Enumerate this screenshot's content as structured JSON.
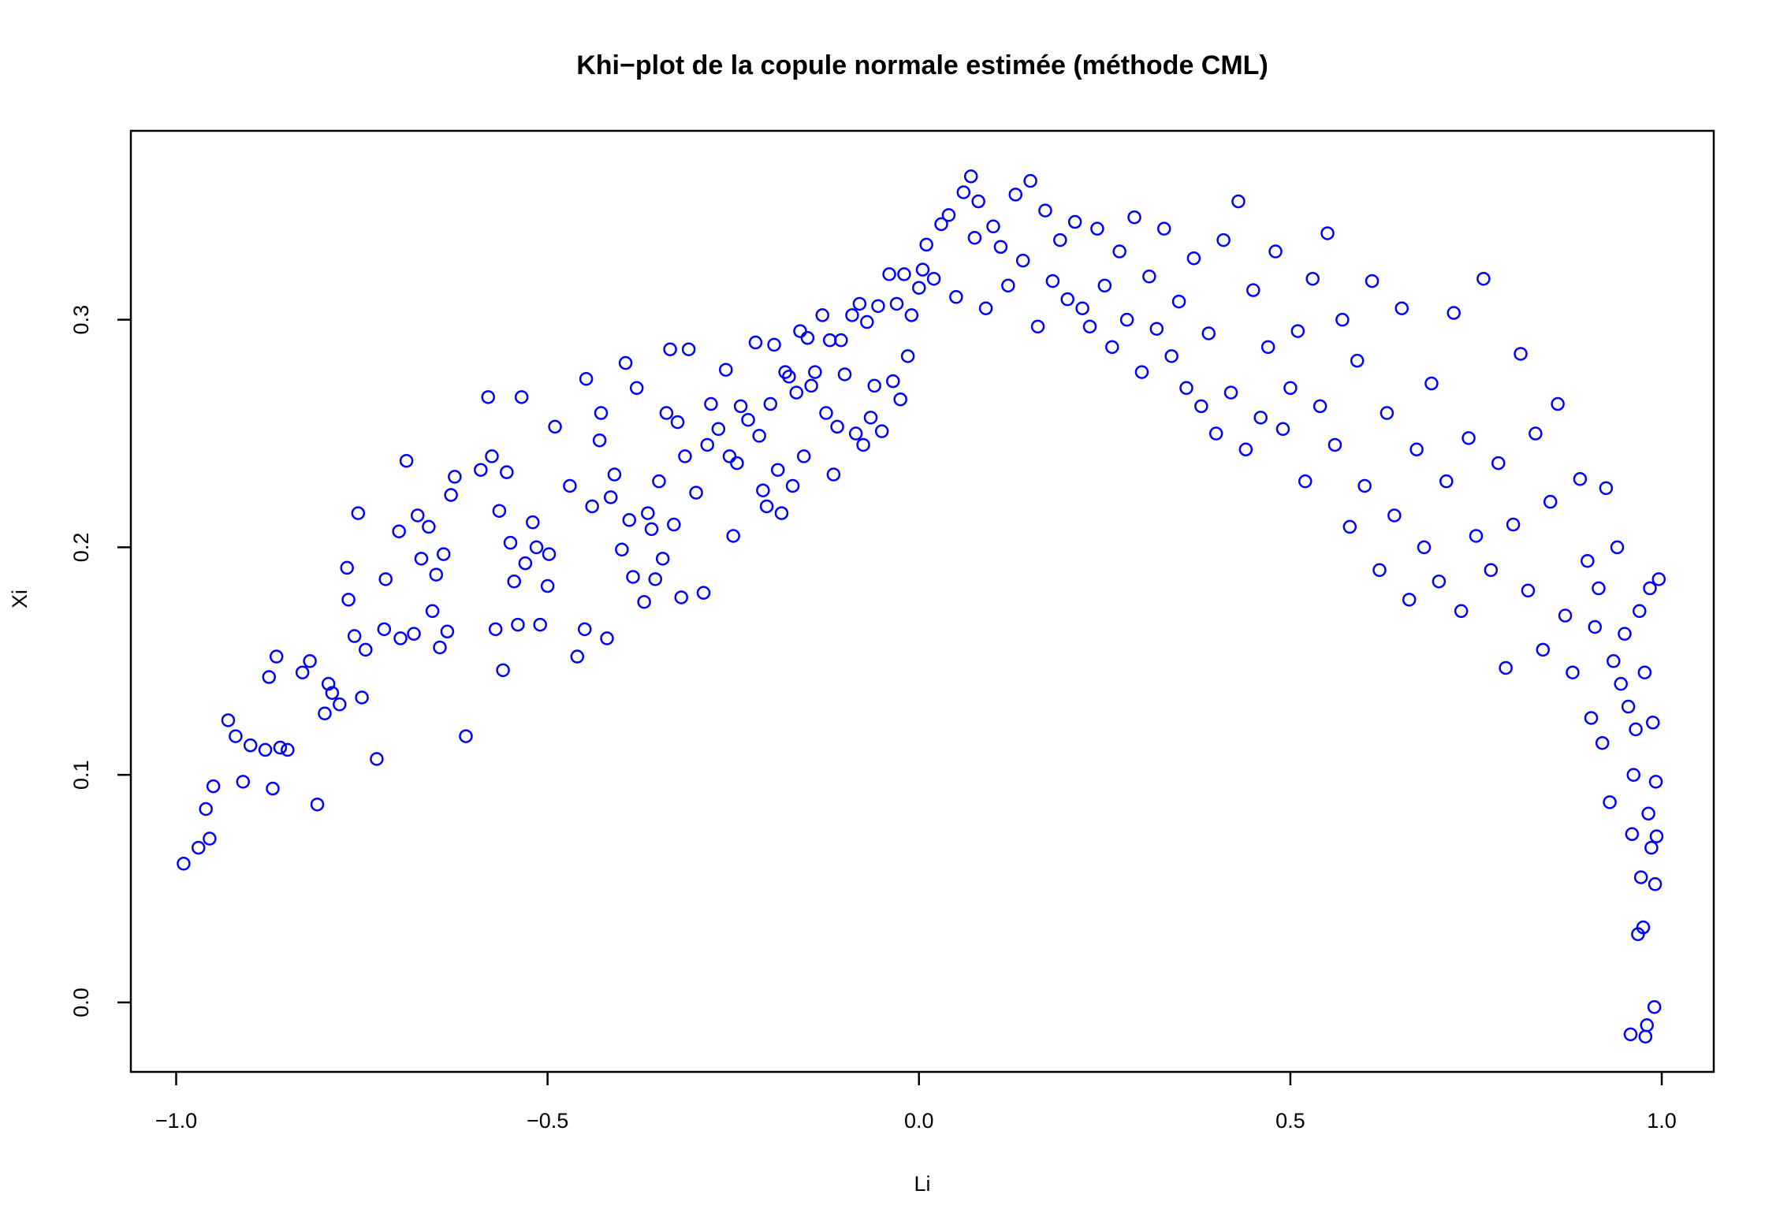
{
  "chart_data": {
    "type": "scatter",
    "title": "Khi−plot de la copule normale estimée (méthode CML)",
    "x_label": "Li",
    "y_label": "Xi",
    "color": "#0000ff",
    "xlim": [
      -1.061,
      1.07
    ],
    "ylim": [
      -0.0305,
      0.383
    ],
    "xticks": [
      {
        "value": -1,
        "label": "−1.0"
      },
      {
        "value": -0.5,
        "label": "−0.5"
      },
      {
        "value": 0,
        "label": "0.0"
      },
      0.5,
      {
        "value": 1,
        "label": "1.0"
      }
    ],
    "yticks": [
      {
        "value": 0,
        "label": "0.0"
      },
      0.1,
      0.2,
      0.3
    ],
    "x": [
      -0.99,
      -0.97,
      -0.96,
      -0.955,
      -0.95,
      -0.93,
      -0.92,
      -0.91,
      -0.9,
      -0.88,
      -0.875,
      -0.87,
      -0.865,
      -0.86,
      -0.85,
      -0.83,
      -0.82,
      -0.81,
      -0.8,
      -0.795,
      -0.79,
      -0.78,
      -0.77,
      -0.768,
      -0.76,
      -0.755,
      -0.75,
      -0.745,
      -0.73,
      -0.72,
      -0.718,
      -0.7,
      -0.698,
      -0.69,
      -0.68,
      -0.675,
      -0.67,
      -0.66,
      -0.655,
      -0.65,
      -0.645,
      -0.64,
      -0.635,
      -0.63,
      -0.625,
      -0.61,
      -0.59,
      -0.58,
      -0.575,
      -0.57,
      -0.565,
      -0.56,
      -0.555,
      -0.55,
      -0.545,
      -0.54,
      -0.535,
      -0.53,
      -0.52,
      -0.515,
      -0.51,
      -0.5,
      -0.498,
      -0.49,
      -0.47,
      -0.46,
      -0.45,
      -0.448,
      -0.44,
      -0.43,
      -0.428,
      -0.42,
      -0.415,
      -0.41,
      -0.4,
      -0.395,
      -0.39,
      -0.385,
      -0.38,
      -0.37,
      -0.365,
      -0.36,
      -0.355,
      -0.35,
      -0.345,
      -0.34,
      -0.335,
      -0.33,
      -0.325,
      -0.32,
      -0.315,
      -0.31,
      -0.3,
      -0.29,
      -0.285,
      -0.28,
      -0.27,
      -0.26,
      -0.255,
      -0.25,
      -0.245,
      -0.24,
      -0.23,
      -0.22,
      -0.215,
      -0.21,
      -0.205,
      -0.2,
      -0.195,
      -0.19,
      -0.185,
      -0.18,
      -0.175,
      -0.17,
      -0.165,
      -0.16,
      -0.155,
      -0.15,
      -0.145,
      -0.14,
      -0.13,
      -0.125,
      -0.12,
      -0.115,
      -0.11,
      -0.105,
      -0.1,
      -0.09,
      -0.085,
      -0.08,
      -0.075,
      -0.07,
      -0.065,
      -0.06,
      -0.055,
      -0.05,
      -0.04,
      -0.035,
      -0.03,
      -0.025,
      -0.02,
      -0.015,
      -0.01,
      0.0,
      0.005,
      0.01,
      0.02,
      0.03,
      0.04,
      0.05,
      0.06,
      0.07,
      0.075,
      0.08,
      0.09,
      0.1,
      0.11,
      0.12,
      0.13,
      0.14,
      0.15,
      0.16,
      0.17,
      0.18,
      0.19,
      0.2,
      0.21,
      0.22,
      0.23,
      0.24,
      0.25,
      0.26,
      0.27,
      0.28,
      0.29,
      0.3,
      0.31,
      0.32,
      0.33,
      0.34,
      0.35,
      0.36,
      0.37,
      0.38,
      0.39,
      0.4,
      0.41,
      0.42,
      0.43,
      0.44,
      0.45,
      0.46,
      0.47,
      0.48,
      0.49,
      0.5,
      0.51,
      0.52,
      0.53,
      0.54,
      0.55,
      0.56,
      0.57,
      0.58,
      0.59,
      0.6,
      0.61,
      0.62,
      0.63,
      0.64,
      0.65,
      0.66,
      0.67,
      0.68,
      0.69,
      0.7,
      0.71,
      0.72,
      0.73,
      0.74,
      0.75,
      0.76,
      0.77,
      0.78,
      0.79,
      0.8,
      0.81,
      0.82,
      0.83,
      0.84,
      0.85,
      0.86,
      0.87,
      0.88,
      0.89,
      0.9,
      0.905,
      0.91,
      0.915,
      0.92,
      0.925,
      0.93,
      0.935,
      0.94,
      0.945,
      0.95,
      0.955,
      0.96,
      0.962,
      0.965,
      0.968,
      0.97,
      0.972,
      0.975,
      0.977,
      0.98,
      0.982,
      0.984,
      0.986,
      0.988,
      0.99,
      0.991,
      0.992,
      0.993,
      0.958,
      0.978,
      0.996
    ],
    "values": [
      0.061,
      0.068,
      0.085,
      0.072,
      0.095,
      0.124,
      0.117,
      0.097,
      0.113,
      0.111,
      0.143,
      0.094,
      0.152,
      0.112,
      0.111,
      0.145,
      0.15,
      0.087,
      0.127,
      0.14,
      0.136,
      0.131,
      0.191,
      0.177,
      0.161,
      0.215,
      0.134,
      0.155,
      0.107,
      0.164,
      0.186,
      0.207,
      0.16,
      0.238,
      0.162,
      0.214,
      0.195,
      0.209,
      0.172,
      0.188,
      0.156,
      0.197,
      0.163,
      0.223,
      0.231,
      0.117,
      0.234,
      0.266,
      0.24,
      0.164,
      0.216,
      0.146,
      0.233,
      0.202,
      0.185,
      0.166,
      0.266,
      0.193,
      0.211,
      0.2,
      0.166,
      0.183,
      0.197,
      0.253,
      0.227,
      0.152,
      0.164,
      0.274,
      0.218,
      0.247,
      0.259,
      0.16,
      0.222,
      0.232,
      0.199,
      0.281,
      0.212,
      0.187,
      0.27,
      0.176,
      0.215,
      0.208,
      0.186,
      0.229,
      0.195,
      0.259,
      0.287,
      0.21,
      0.255,
      0.178,
      0.24,
      0.287,
      0.224,
      0.18,
      0.245,
      0.263,
      0.252,
      0.278,
      0.24,
      0.205,
      0.237,
      0.262,
      0.256,
      0.29,
      0.249,
      0.225,
      0.218,
      0.263,
      0.289,
      0.234,
      0.215,
      0.277,
      0.275,
      0.227,
      0.268,
      0.295,
      0.24,
      0.292,
      0.271,
      0.277,
      0.302,
      0.259,
      0.291,
      0.232,
      0.253,
      0.291,
      0.276,
      0.302,
      0.25,
      0.307,
      0.245,
      0.299,
      0.257,
      0.271,
      0.306,
      0.251,
      0.32,
      0.273,
      0.307,
      0.265,
      0.32,
      0.284,
      0.302,
      0.314,
      0.322,
      0.333,
      0.318,
      0.342,
      0.346,
      0.31,
      0.356,
      0.363,
      0.336,
      0.352,
      0.305,
      0.341,
      0.332,
      0.315,
      0.355,
      0.326,
      0.361,
      0.297,
      0.348,
      0.317,
      0.335,
      0.309,
      0.343,
      0.305,
      0.297,
      0.34,
      0.315,
      0.288,
      0.33,
      0.3,
      0.345,
      0.277,
      0.319,
      0.296,
      0.34,
      0.284,
      0.308,
      0.27,
      0.327,
      0.262,
      0.294,
      0.25,
      0.335,
      0.268,
      0.352,
      0.243,
      0.313,
      0.257,
      0.288,
      0.33,
      0.252,
      0.27,
      0.295,
      0.229,
      0.318,
      0.262,
      0.338,
      0.245,
      0.3,
      0.209,
      0.282,
      0.227,
      0.317,
      0.19,
      0.259,
      0.214,
      0.305,
      0.177,
      0.243,
      0.2,
      0.272,
      0.185,
      0.229,
      0.303,
      0.172,
      0.248,
      0.205,
      0.318,
      0.19,
      0.237,
      0.147,
      0.21,
      0.285,
      0.181,
      0.25,
      0.155,
      0.22,
      0.263,
      0.17,
      0.145,
      0.23,
      0.194,
      0.125,
      0.165,
      0.182,
      0.114,
      0.226,
      0.088,
      0.15,
      0.2,
      0.14,
      0.162,
      0.13,
      0.074,
      0.1,
      0.12,
      0.03,
      0.172,
      0.055,
      0.033,
      0.145,
      -0.01,
      0.083,
      0.182,
      0.068,
      0.123,
      -0.002,
      0.052,
      0.097,
      0.073,
      -0.014,
      -0.015,
      0.186
    ]
  }
}
